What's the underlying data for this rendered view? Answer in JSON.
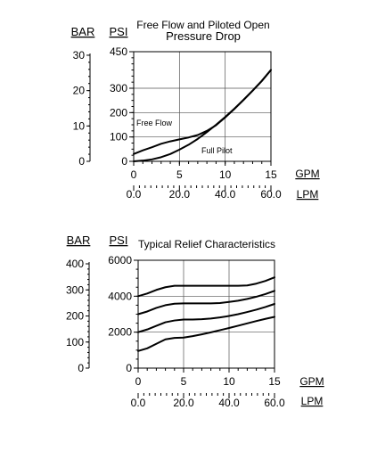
{
  "chart_data": [
    {
      "type": "line",
      "title": "Free Flow and Piloted Open",
      "subtitle": "Pressure Drop",
      "y_unit_left": "BAR",
      "y_unit_right": "PSI",
      "x_unit": "GPM",
      "x2_unit": "LPM",
      "bar_ticks": [
        {
          "value": 0,
          "label": "0"
        },
        {
          "value": 10,
          "label": "10"
        },
        {
          "value": 20,
          "label": "20"
        },
        {
          "value": 30,
          "label": "30"
        }
      ],
      "psi_ticks": [
        {
          "value": 0,
          "label": "0"
        },
        {
          "value": 100,
          "label": "100"
        },
        {
          "value": 200,
          "label": "200"
        },
        {
          "value": 300,
          "label": "300"
        },
        {
          "value": 450,
          "label": "450"
        }
      ],
      "gpm_ticks": [
        {
          "value": 0,
          "label": "0"
        },
        {
          "value": 5,
          "label": "5"
        },
        {
          "value": 10,
          "label": "10"
        },
        {
          "value": 15,
          "label": "15"
        }
      ],
      "lpm_ticks": [
        {
          "value": 0,
          "label": "0.0"
        },
        {
          "value": 20,
          "label": "20.0"
        },
        {
          "value": 40,
          "label": "40.0"
        },
        {
          "value": 60,
          "label": "60.0"
        }
      ],
      "xlim": [
        0,
        15
      ],
      "ylim": [
        0,
        450
      ],
      "bar_ylim": [
        0,
        31
      ],
      "lpm_xlim": [
        0,
        60
      ],
      "grid": true,
      "series": [
        {
          "name": "Free Flow",
          "x": [
            0,
            1,
            2,
            3,
            4,
            5,
            6,
            7,
            8,
            9,
            10,
            11,
            12,
            13,
            14,
            15
          ],
          "y": [
            30,
            45,
            58,
            72,
            82,
            90,
            98,
            108,
            125,
            148,
            180,
            215,
            252,
            290,
            330,
            375
          ]
        },
        {
          "name": "Full Pilot",
          "x": [
            0,
            1,
            2,
            3,
            4,
            5,
            6,
            7,
            8,
            9,
            10,
            11,
            12,
            13,
            14,
            15
          ],
          "y": [
            0,
            3,
            8,
            17,
            30,
            48,
            68,
            92,
            120,
            150,
            182,
            216,
            252,
            290,
            330,
            375
          ]
        }
      ]
    },
    {
      "type": "line",
      "title": "Typical Relief Characteristics",
      "y_unit_left": "BAR",
      "y_unit_right": "PSI",
      "x_unit": "GPM",
      "x2_unit": "LPM",
      "bar_ticks": [
        {
          "value": 0,
          "label": "0"
        },
        {
          "value": 100,
          "label": "100"
        },
        {
          "value": 200,
          "label": "200"
        },
        {
          "value": 300,
          "label": "300"
        },
        {
          "value": 400,
          "label": "400"
        }
      ],
      "psi_ticks": [
        {
          "value": 0,
          "label": "0"
        },
        {
          "value": 2000,
          "label": "2000"
        },
        {
          "value": 4000,
          "label": "4000"
        },
        {
          "value": 6000,
          "label": "6000"
        }
      ],
      "gpm_ticks": [
        {
          "value": 0,
          "label": "0"
        },
        {
          "value": 5,
          "label": "5"
        },
        {
          "value": 10,
          "label": "10"
        },
        {
          "value": 15,
          "label": "15"
        }
      ],
      "lpm_ticks": [
        {
          "value": 0,
          "label": "0.0"
        },
        {
          "value": 20,
          "label": "20.0"
        },
        {
          "value": 40,
          "label": "40.0"
        },
        {
          "value": 60,
          "label": "60.0"
        }
      ],
      "xlim": [
        0,
        15
      ],
      "ylim": [
        0,
        6000
      ],
      "bar_ylim": [
        0,
        413.7
      ],
      "lpm_xlim": [
        0,
        60
      ],
      "grid": true,
      "series": [
        {
          "x": [
            0,
            1,
            2,
            3,
            4,
            5,
            6,
            7,
            8,
            9,
            10,
            11,
            12,
            13,
            14,
            15
          ],
          "y": [
            4000,
            4150,
            4350,
            4500,
            4580,
            4580,
            4580,
            4580,
            4580,
            4580,
            4580,
            4580,
            4600,
            4700,
            4850,
            5050
          ]
        },
        {
          "x": [
            0,
            1,
            2,
            3,
            4,
            5,
            6,
            7,
            8,
            9,
            10,
            11,
            12,
            13,
            14,
            15
          ],
          "y": [
            3000,
            3150,
            3350,
            3500,
            3580,
            3600,
            3600,
            3600,
            3600,
            3620,
            3680,
            3750,
            3850,
            3970,
            4120,
            4300
          ]
        },
        {
          "x": [
            0,
            1,
            2,
            3,
            4,
            5,
            6,
            7,
            8,
            9,
            10,
            11,
            12,
            13,
            14,
            15
          ],
          "y": [
            2000,
            2150,
            2350,
            2550,
            2650,
            2700,
            2700,
            2720,
            2760,
            2820,
            2900,
            3000,
            3120,
            3250,
            3400,
            3570
          ]
        },
        {
          "x": [
            0,
            1,
            2,
            3,
            4,
            5,
            6,
            7,
            8,
            9,
            10,
            11,
            12,
            13,
            14,
            15
          ],
          "y": [
            950,
            1100,
            1350,
            1600,
            1680,
            1700,
            1780,
            1880,
            1990,
            2110,
            2230,
            2360,
            2490,
            2620,
            2740,
            2850
          ]
        }
      ]
    }
  ]
}
